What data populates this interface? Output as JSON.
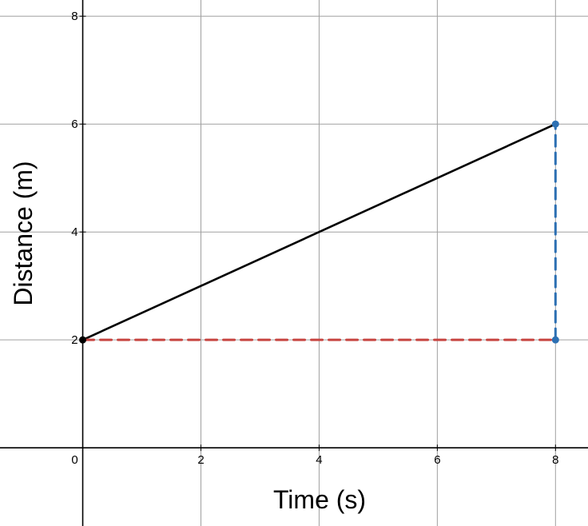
{
  "chart_data": {
    "type": "line",
    "title": "",
    "xlabel": "Time (s)",
    "ylabel": "Distance (m)",
    "xlim": [
      -1.4,
      8.55
    ],
    "ylim": [
      -1.45,
      8.3
    ],
    "x_ticks": [
      0,
      2,
      4,
      6,
      8
    ],
    "y_ticks": [
      2,
      4,
      6,
      8
    ],
    "x_tick_labels": [
      "0",
      "2",
      "4",
      "6",
      "8"
    ],
    "y_tick_labels": [
      "2",
      "4",
      "6",
      "8"
    ],
    "grid": true,
    "series": [
      {
        "style": "solid",
        "color": "#000000",
        "points": [
          {
            "x": 0,
            "y": 2
          },
          {
            "x": 8,
            "y": 6
          }
        ]
      },
      {
        "style": "dashed",
        "color": "#c74440",
        "points": [
          {
            "x": 0,
            "y": 2
          },
          {
            "x": 8,
            "y": 2
          }
        ]
      },
      {
        "style": "dashed",
        "color": "#2d70b3",
        "points": [
          {
            "x": 8,
            "y": 2
          },
          {
            "x": 8,
            "y": 6
          }
        ]
      }
    ],
    "markers": [
      {
        "x": 0,
        "y": 2,
        "color": "#000000"
      },
      {
        "x": 8,
        "y": 6,
        "color": "#2d70b3"
      },
      {
        "x": 8,
        "y": 2,
        "color": "#2d70b3"
      }
    ]
  }
}
